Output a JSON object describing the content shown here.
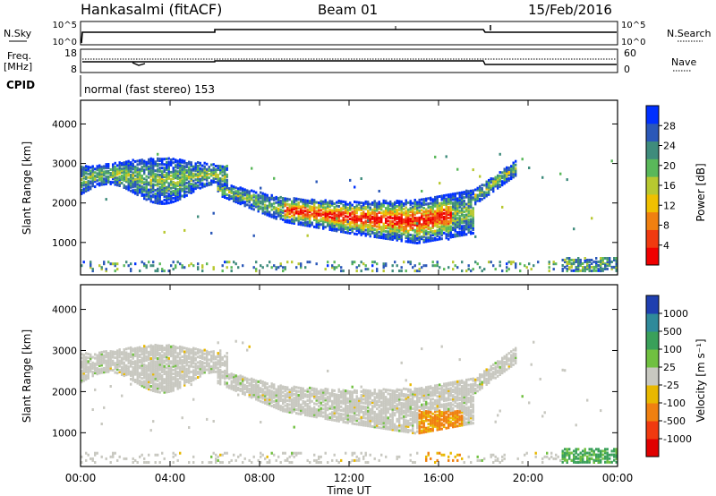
{
  "header": {
    "station": "Hankasalmi (fitACF)",
    "beam": "Beam 01",
    "date": "15/Feb/2016"
  },
  "strip_labels": {
    "nsky": "N.Sky",
    "nsky_ticks": [
      "10^5",
      "10^0"
    ],
    "nsearch": "N.Search",
    "nsearch_ticks": [
      "10^5",
      "10^0"
    ],
    "freq_label": "Freq.",
    "freq_unit": "[MHz]",
    "freq_ticks": [
      "18",
      "8"
    ],
    "nave_label": "Nave",
    "nave_ticks": [
      "60",
      "0"
    ],
    "cpid_label": "CPID",
    "cpid_text": "normal (fast stereo) 153"
  },
  "chart_data": [
    {
      "type": "heatmap",
      "name": "power",
      "ylabel": "Slant Range [km]",
      "y_ticks": [
        "4000",
        "3000",
        "2000",
        "1000"
      ],
      "ylim": [
        180,
        4600
      ],
      "colorbar_label": "Power [dB]",
      "colorbar_ticks": [
        "28",
        "24",
        "20",
        "16",
        "12",
        "8",
        "4"
      ],
      "colors": [
        "#0030ff",
        "#2b58b8",
        "#3f8c7c",
        "#5ab85a",
        "#b8c830",
        "#f0c000",
        "#f08010",
        "#f03a10",
        "#f00000"
      ]
    },
    {
      "type": "heatmap",
      "name": "velocity",
      "ylabel": "Slant Range [km]",
      "y_ticks": [
        "4000",
        "3000",
        "2000",
        "1000"
      ],
      "ylim": [
        180,
        4600
      ],
      "colorbar_label": "Velocity [m s⁻¹]",
      "colorbar_ticks": [
        "1000",
        "500",
        "100",
        "25",
        "-25",
        "-100",
        "-500",
        "-1000"
      ],
      "colors": [
        "#1f3fb0",
        "#2f8a9a",
        "#3aa05a",
        "#70c040",
        "#c8c8c0",
        "#e8b800",
        "#f08010",
        "#f03a10",
        "#e00000"
      ]
    }
  ],
  "x_axis": {
    "ticks": [
      "00:00",
      "04:00",
      "08:00",
      "12:00",
      "16:00",
      "20:00",
      "00:00"
    ],
    "label": "Time UT"
  }
}
